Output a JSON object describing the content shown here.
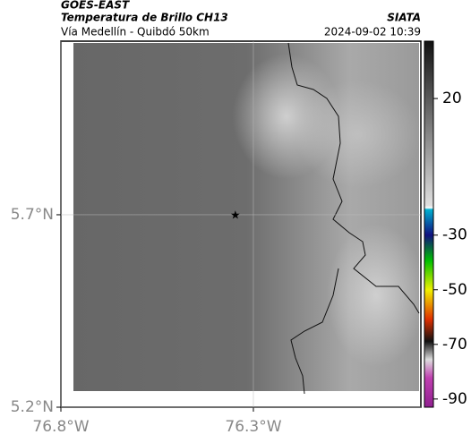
{
  "header": {
    "satellite": "GOES-EAST",
    "title": "Temperatura de Brillo CH13",
    "subtitle": "Vía Medellín - Quibdó 50km",
    "source": "SIATA",
    "timestamp": "2024-09-02 10:39"
  },
  "map": {
    "xlim": [
      -76.8,
      -75.865
    ],
    "ylim": [
      5.2,
      6.151
    ],
    "xticks": [
      {
        "value": -76.8,
        "label": "76.8°W"
      },
      {
        "value": -76.3,
        "label": "76.3°W"
      }
    ],
    "yticks": [
      {
        "value": 5.2,
        "label": "5.2°N"
      },
      {
        "value": 5.7,
        "label": "5.7°N"
      }
    ],
    "grid": true,
    "marker": {
      "lon": -76.347,
      "lat": 5.7
    }
  },
  "colorbar": {
    "lim": [
      -93,
      41
    ],
    "ticks": [
      20,
      -30,
      -50,
      -70,
      -90
    ]
  }
}
